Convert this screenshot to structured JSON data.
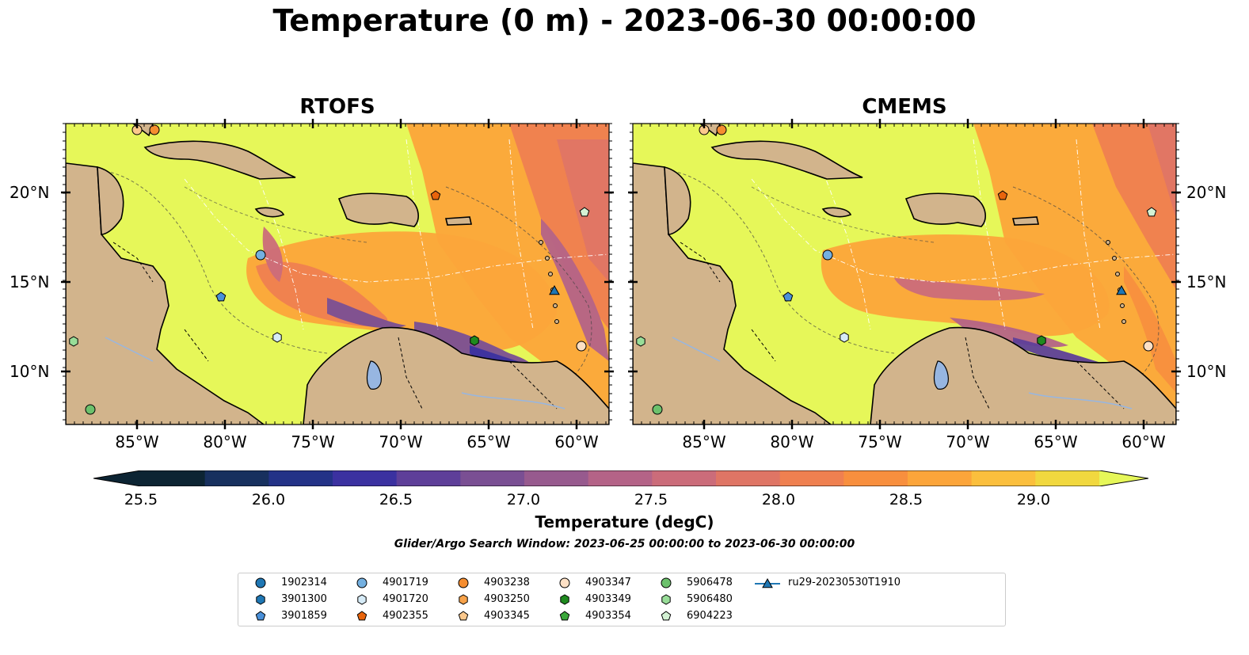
{
  "title": "Temperature (0 m) - 2023-06-30 00:00:00",
  "panels": [
    {
      "title": "RTOFS"
    },
    {
      "title": "CMEMS"
    }
  ],
  "lon_ticks": [
    "85°W",
    "80°W",
    "75°W",
    "70°W",
    "65°W",
    "60°W"
  ],
  "lat_ticks": [
    "20°N",
    "15°N",
    "10°N"
  ],
  "contour_labels": [
    "-100",
    "-1000"
  ],
  "colorbar": {
    "label": "Temperature (degC)",
    "ticks": [
      "25.5",
      "26.0",
      "26.5",
      "27.0",
      "27.5",
      "28.0",
      "28.5",
      "29.0"
    ],
    "colors": [
      "#0c2433",
      "#17305e",
      "#233287",
      "#3b31a0",
      "#5e3f99",
      "#7a4f93",
      "#975a8e",
      "#b46387",
      "#cb6c7a",
      "#df7565",
      "#ef8050",
      "#f88f3e",
      "#fca53a",
      "#fbbf3d",
      "#f1d83f",
      "#e6f759"
    ]
  },
  "search_window": "Glider/Argo Search Window: 2023-06-25 00:00:00 to 2023-06-30 00:00:00",
  "legend": [
    {
      "label": "1902314",
      "marker": "circle",
      "color": "#1f77b4"
    },
    {
      "label": "3901300",
      "marker": "hexagon",
      "color": "#1f77b4"
    },
    {
      "label": "3901859",
      "marker": "pentagon",
      "color": "#4a90d9"
    },
    {
      "label": "4901719",
      "marker": "circle",
      "color": "#74b0e0"
    },
    {
      "label": "4901720",
      "marker": "hexagon",
      "color": "#d6ebf7"
    },
    {
      "label": "4902355",
      "marker": "pentagon",
      "color": "#e8640c"
    },
    {
      "label": "4903238",
      "marker": "circle",
      "color": "#f58d30"
    },
    {
      "label": "4903250",
      "marker": "hexagon",
      "color": "#f7a24a"
    },
    {
      "label": "4903345",
      "marker": "pentagon",
      "color": "#fbc88c"
    },
    {
      "label": "4903347",
      "marker": "circle",
      "color": "#fde0c5"
    },
    {
      "label": "4903349",
      "marker": "hexagon",
      "color": "#1f8a1f"
    },
    {
      "label": "4903354",
      "marker": "pentagon",
      "color": "#3ba83b"
    },
    {
      "label": "5906478",
      "marker": "circle",
      "color": "#6cc16c"
    },
    {
      "label": "5906480",
      "marker": "hexagon",
      "color": "#98dd98"
    },
    {
      "label": "6904223",
      "marker": "pentagon",
      "color": "#d4f2d4"
    },
    {
      "label": "ru29-20230530T1910",
      "marker": "triangle-line",
      "color": "#1f77b4"
    }
  ],
  "land_color": "#d2b48c",
  "lake_color": "#97b6e1"
}
